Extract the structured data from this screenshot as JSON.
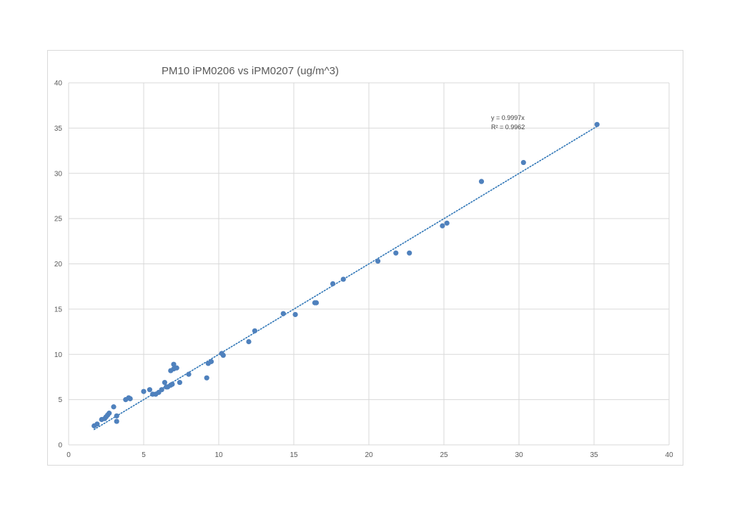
{
  "chart_data": {
    "type": "scatter",
    "title": "PM10 iPM0206 vs iPM0207 (ug/m^3)",
    "xlabel": "",
    "ylabel": "",
    "xlim": [
      0,
      40
    ],
    "ylim": [
      0,
      40
    ],
    "x_ticks": [
      0,
      5,
      10,
      15,
      20,
      25,
      30,
      35,
      40
    ],
    "y_ticks": [
      0,
      5,
      10,
      15,
      20,
      25,
      30,
      35,
      40
    ],
    "grid": true,
    "legend": "none",
    "marker_color": "#4f81bd",
    "trendline": {
      "type": "linear-through-origin",
      "slope": 0.9997,
      "x_range": [
        1.7,
        35.2
      ],
      "style": "dotted",
      "color": "#2e75b6",
      "equation_label": "y = 0.9997x",
      "r2_label": "R² = 0.9962"
    },
    "points": [
      {
        "x": 1.7,
        "y": 2.1
      },
      {
        "x": 1.9,
        "y": 2.3
      },
      {
        "x": 2.2,
        "y": 2.8
      },
      {
        "x": 2.4,
        "y": 2.9
      },
      {
        "x": 2.5,
        "y": 3.1
      },
      {
        "x": 2.6,
        "y": 3.3
      },
      {
        "x": 2.7,
        "y": 3.5
      },
      {
        "x": 3.0,
        "y": 4.2
      },
      {
        "x": 3.2,
        "y": 3.2
      },
      {
        "x": 3.2,
        "y": 2.6
      },
      {
        "x": 3.8,
        "y": 5.0
      },
      {
        "x": 4.0,
        "y": 5.2
      },
      {
        "x": 4.1,
        "y": 5.1
      },
      {
        "x": 5.0,
        "y": 5.9
      },
      {
        "x": 5.4,
        "y": 6.1
      },
      {
        "x": 5.6,
        "y": 5.6
      },
      {
        "x": 5.8,
        "y": 5.6
      },
      {
        "x": 6.0,
        "y": 5.8
      },
      {
        "x": 6.2,
        "y": 6.1
      },
      {
        "x": 6.4,
        "y": 6.9
      },
      {
        "x": 6.5,
        "y": 6.4
      },
      {
        "x": 6.6,
        "y": 6.4
      },
      {
        "x": 6.8,
        "y": 6.6
      },
      {
        "x": 6.8,
        "y": 8.2
      },
      {
        "x": 6.9,
        "y": 6.7
      },
      {
        "x": 7.0,
        "y": 8.9
      },
      {
        "x": 7.0,
        "y": 8.4
      },
      {
        "x": 7.2,
        "y": 8.5
      },
      {
        "x": 7.4,
        "y": 6.9
      },
      {
        "x": 8.0,
        "y": 7.8
      },
      {
        "x": 9.2,
        "y": 7.4
      },
      {
        "x": 9.3,
        "y": 9.0
      },
      {
        "x": 9.5,
        "y": 9.2
      },
      {
        "x": 10.2,
        "y": 10.1
      },
      {
        "x": 10.3,
        "y": 9.9
      },
      {
        "x": 12.0,
        "y": 11.4
      },
      {
        "x": 12.4,
        "y": 12.6
      },
      {
        "x": 14.3,
        "y": 14.5
      },
      {
        "x": 15.1,
        "y": 14.4
      },
      {
        "x": 16.4,
        "y": 15.7
      },
      {
        "x": 16.5,
        "y": 15.7
      },
      {
        "x": 17.6,
        "y": 17.8
      },
      {
        "x": 18.3,
        "y": 18.3
      },
      {
        "x": 20.6,
        "y": 20.3
      },
      {
        "x": 21.8,
        "y": 21.2
      },
      {
        "x": 22.7,
        "y": 21.2
      },
      {
        "x": 24.9,
        "y": 24.2
      },
      {
        "x": 25.2,
        "y": 24.5
      },
      {
        "x": 27.5,
        "y": 29.1
      },
      {
        "x": 30.3,
        "y": 31.2
      },
      {
        "x": 35.2,
        "y": 35.4
      }
    ]
  }
}
